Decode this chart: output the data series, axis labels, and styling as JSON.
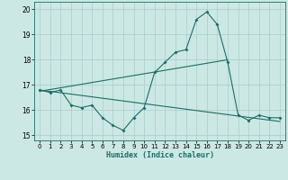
{
  "title": "",
  "xlabel": "Humidex (Indice chaleur)",
  "ylabel": "",
  "background_color": "#cce8e4",
  "grid_color": "#aacccc",
  "line_color": "#1a6e68",
  "xlim": [
    -0.5,
    23.5
  ],
  "ylim": [
    14.8,
    20.3
  ],
  "yticks": [
    15,
    16,
    17,
    18,
    19,
    20
  ],
  "xticks": [
    0,
    1,
    2,
    3,
    4,
    5,
    6,
    7,
    8,
    9,
    10,
    11,
    12,
    13,
    14,
    15,
    16,
    17,
    18,
    19,
    20,
    21,
    22,
    23
  ],
  "curve1_x": [
    0,
    1,
    2,
    3,
    4,
    5,
    6,
    7,
    8,
    9,
    10,
    11,
    12,
    13,
    14,
    15,
    16,
    17,
    18,
    19,
    20,
    21,
    22,
    23
  ],
  "curve1_y": [
    16.8,
    16.7,
    16.8,
    16.2,
    16.1,
    16.2,
    15.7,
    15.4,
    15.2,
    15.7,
    16.1,
    17.5,
    17.9,
    18.3,
    18.4,
    19.6,
    19.9,
    19.4,
    17.9,
    15.8,
    15.6,
    15.8,
    15.7,
    15.7
  ],
  "curve2_x": [
    0,
    23
  ],
  "curve2_y": [
    16.8,
    15.55
  ],
  "curve3_x": [
    0,
    18
  ],
  "curve3_y": [
    16.75,
    18.0
  ]
}
